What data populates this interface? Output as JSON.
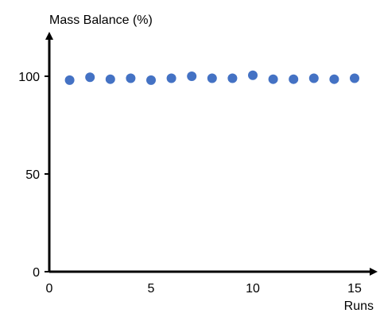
{
  "chart_data": {
    "type": "scatter",
    "title": "",
    "xlabel": "Runs",
    "ylabel": "Mass Balance (%)",
    "xlim": [
      0,
      16
    ],
    "ylim": [
      0,
      110
    ],
    "x_ticks": [
      "0",
      "5",
      "10",
      "15"
    ],
    "y_ticks": [
      "0",
      "50",
      "100"
    ],
    "grid": false,
    "legend": "none",
    "marker_color": "#4472c4",
    "series": [
      {
        "x": [
          1,
          2,
          3,
          4,
          5,
          6,
          7,
          8,
          9,
          10,
          11,
          12,
          13,
          14,
          15
        ],
        "y": [
          98,
          99.5,
          98.5,
          99,
          98,
          99,
          100,
          99,
          99,
          100.5,
          98.5,
          98.5,
          99,
          98.5,
          99
        ]
      }
    ]
  }
}
